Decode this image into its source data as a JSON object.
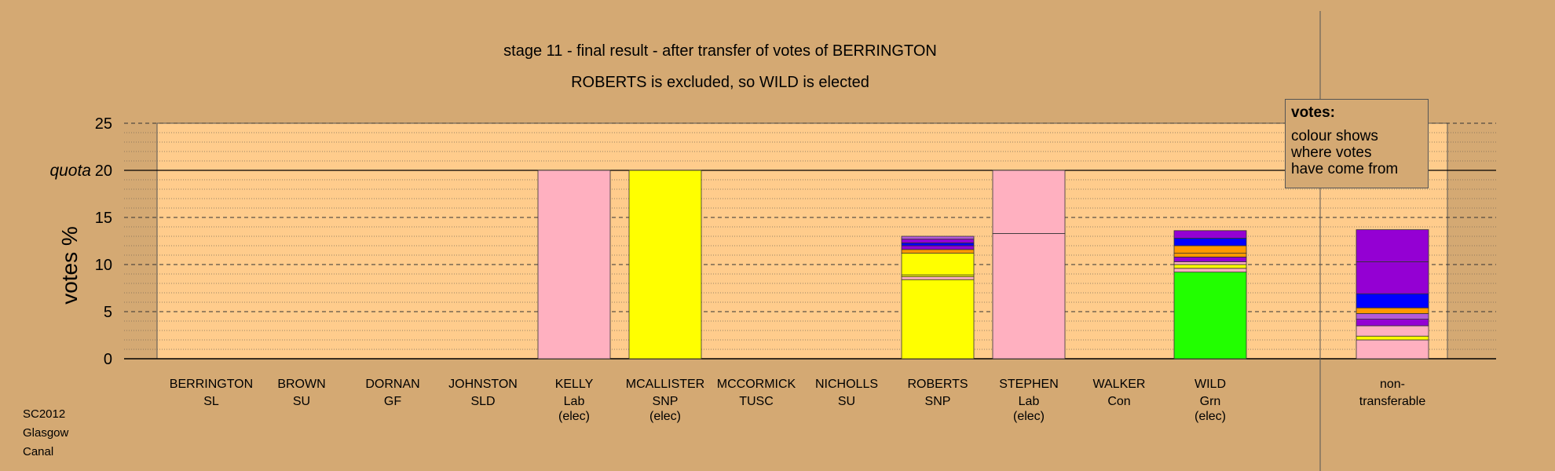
{
  "chart_data": {
    "type": "bar",
    "stacked": true,
    "title": "stage 11 - final result - after transfer of votes of BERRINGTON",
    "subtitle": "ROBERTS is excluded, so WILD is elected",
    "ylabel": "votes %",
    "ylim": [
      0,
      25
    ],
    "yticks": [
      "0",
      "5",
      "10",
      "15",
      "20",
      "25"
    ],
    "quota": {
      "label": "quota",
      "value": 20
    },
    "categories": [
      {
        "name": "BERRINGTON",
        "party": "SL",
        "status": ""
      },
      {
        "name": "BROWN",
        "party": "SU",
        "status": ""
      },
      {
        "name": "DORNAN",
        "party": "GF",
        "status": ""
      },
      {
        "name": "JOHNSTON",
        "party": "SLD",
        "status": ""
      },
      {
        "name": "KELLY",
        "party": "Lab",
        "status": "(elec)"
      },
      {
        "name": "MCALLISTER",
        "party": "SNP",
        "status": "(elec)"
      },
      {
        "name": "MCCORMICK",
        "party": "TUSC",
        "status": ""
      },
      {
        "name": "NICHOLLS",
        "party": "SU",
        "status": ""
      },
      {
        "name": "ROBERTS",
        "party": "SNP",
        "status": ""
      },
      {
        "name": "STEPHEN",
        "party": "Lab",
        "status": "(elec)"
      },
      {
        "name": "WALKER",
        "party": "Con",
        "status": ""
      },
      {
        "name": "WILD",
        "party": "Grn",
        "status": "(elec)"
      }
    ],
    "nontransferable": {
      "line1": "non-",
      "line2": "transferable"
    },
    "bars": [
      [],
      [],
      [],
      [],
      [
        {
          "value": 20.0,
          "color": "#ffb0c0"
        }
      ],
      [
        {
          "value": 20.0,
          "color": "#ffff00"
        }
      ],
      [],
      [],
      [
        {
          "value": 8.4,
          "color": "#ffff00"
        },
        {
          "value": 0.3,
          "color": "#ffb0c0"
        },
        {
          "value": 0.2,
          "color": "#ffff00"
        },
        {
          "value": 2.3,
          "color": "#ffff00"
        },
        {
          "value": 0.4,
          "color": "#ff9900"
        },
        {
          "value": 0.4,
          "color": "#9400d3"
        },
        {
          "value": 0.3,
          "color": "#0000ff"
        },
        {
          "value": 0.4,
          "color": "#9400d3"
        },
        {
          "value": 0.3,
          "color": "#b35bd9"
        }
      ],
      [
        {
          "value": 13.3,
          "color": "#ffb0c0"
        },
        {
          "value": 6.7,
          "color": "#ffb0c0"
        }
      ],
      [],
      [
        {
          "value": 9.2,
          "color": "#22ff00"
        },
        {
          "value": 0.4,
          "color": "#ffb0c0"
        },
        {
          "value": 0.4,
          "color": "#ffff00"
        },
        {
          "value": 0.3,
          "color": "#ffb0c0"
        },
        {
          "value": 0.5,
          "color": "#9400d3"
        },
        {
          "value": 0.4,
          "color": "#ff9900"
        },
        {
          "value": 0.8,
          "color": "#ff9900"
        },
        {
          "value": 0.8,
          "color": "#0000ff"
        },
        {
          "value": 0.8,
          "color": "#9400d3"
        }
      ]
    ],
    "nontransferable_bar": [
      {
        "value": 2.0,
        "color": "#ffb0c0"
      },
      {
        "value": 0.4,
        "color": "#ffff00"
      },
      {
        "value": 1.1,
        "color": "#ffb0c0"
      },
      {
        "value": 0.7,
        "color": "#9400d3"
      },
      {
        "value": 0.6,
        "color": "#b35bd9"
      },
      {
        "value": 0.6,
        "color": "#ff9900"
      },
      {
        "value": 1.5,
        "color": "#0000ff"
      },
      {
        "value": 3.4,
        "color": "#9400d3"
      },
      {
        "value": 3.4,
        "color": "#9400d3"
      }
    ],
    "grid": true,
    "legend_position": "top-right",
    "colors": {
      "background": "#d4a973",
      "plot_area": "#ffcc8c"
    }
  },
  "legend": {
    "title": "votes:",
    "line1": "colour shows",
    "line2": "where votes",
    "line3": "have come from"
  },
  "footer": {
    "line1": "SC2012",
    "line2": "Glasgow",
    "line3": "Canal"
  }
}
